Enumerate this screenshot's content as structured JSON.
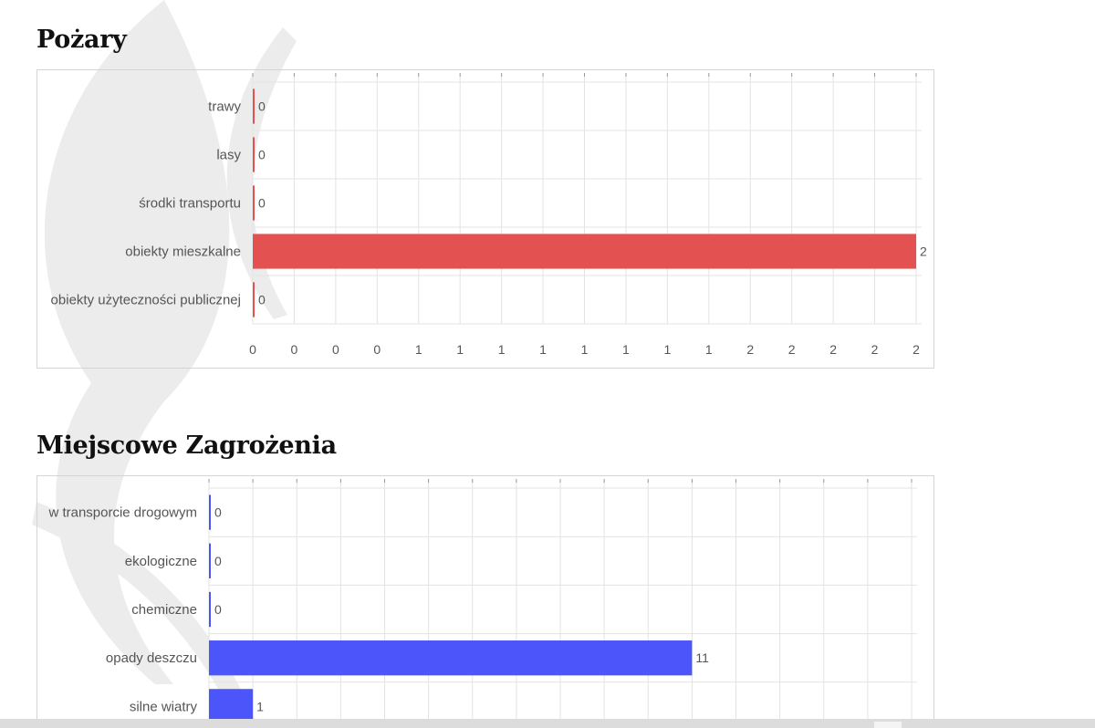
{
  "sections": {
    "pozary_title": "Pożary",
    "mz_title": "Miejscowe Zagrożenia"
  },
  "chart_data": [
    {
      "type": "bar",
      "orientation": "horizontal",
      "title": "Pożary",
      "categories": [
        "trawy",
        "lasy",
        "środki transportu",
        "obiekty mieszkalne",
        "obiekty użyteczności publicznej"
      ],
      "values": [
        0,
        0,
        0,
        2,
        0
      ],
      "data_labels": [
        "0",
        "0",
        "0",
        "2",
        "0"
      ],
      "x_tick_labels": [
        "0",
        "0",
        "0",
        "0",
        "1",
        "1",
        "1",
        "1",
        "1",
        "1",
        "1",
        "1",
        "2",
        "2",
        "2",
        "2",
        "2"
      ],
      "xlim": [
        0,
        2
      ],
      "color": "#e35151",
      "grid": true,
      "legend": "none"
    },
    {
      "type": "bar",
      "orientation": "horizontal",
      "title": "Miejscowe Zagrożenia",
      "categories": [
        "w transporcie drogowym",
        "ekologiczne",
        "chemiczne",
        "opady deszczu",
        "silne wiatry"
      ],
      "values": [
        0,
        0,
        0,
        11,
        1
      ],
      "data_labels": [
        "0",
        "0",
        "0",
        "11",
        "1"
      ],
      "x_tick_labels": [],
      "xlim": [
        0,
        16
      ],
      "color": "#4b55fa",
      "grid": true,
      "legend": "none"
    }
  ]
}
